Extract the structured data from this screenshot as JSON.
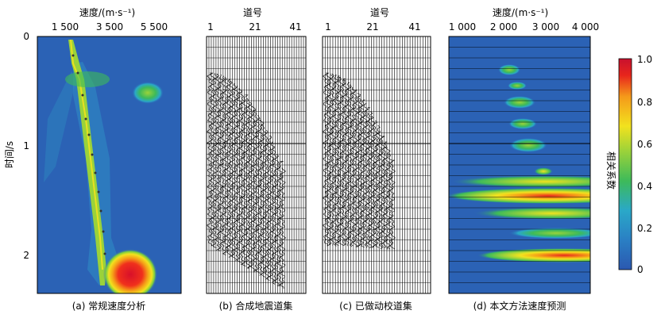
{
  "figure": {
    "shared_y_label": "时间/s",
    "time_ticks": [
      "0",
      "1",
      "2"
    ]
  },
  "panel_a": {
    "caption": "(a) 常规速度分析",
    "top_label": "速度/(m·s⁻¹)",
    "x_ticks": [
      "1 500",
      "3 500",
      "5 500"
    ]
  },
  "panel_b": {
    "caption": "(b) 合成地震道集",
    "top_label": "道号",
    "x_ticks": [
      "1",
      "21",
      "41"
    ]
  },
  "panel_c": {
    "caption": "(c) 已做动校道集",
    "top_label": "道号",
    "x_ticks": [
      "1",
      "21",
      "41"
    ]
  },
  "panel_d": {
    "caption": "(d) 本文方法速度预测",
    "top_label": "速度/(m·s⁻¹)",
    "x_ticks": [
      "1 000",
      "2 000",
      "3 000",
      "4 000"
    ]
  },
  "colorbar": {
    "label": "相关系数",
    "ticks": [
      "0",
      "0.2",
      "0.4",
      "0.6",
      "0.8",
      "1.0"
    ],
    "colors": [
      "#2b58b0",
      "#2aa8c8",
      "#3dba5a",
      "#9ad23a",
      "#f2e21e",
      "#f59a1a",
      "#e8261c",
      "#c8102e"
    ]
  },
  "colors": {
    "background_field": "#2b62b5",
    "trace_ink": "#000000"
  }
}
